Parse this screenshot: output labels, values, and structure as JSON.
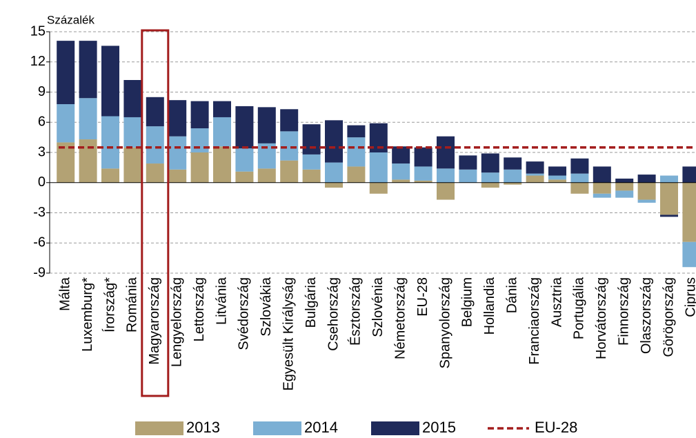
{
  "chart_data": {
    "type": "bar",
    "stacked": true,
    "y_axis_label": "Százalék",
    "categories": [
      "Málta",
      "Luxemburg*",
      "Írország*",
      "Románia",
      "Magyarország",
      "Lengyelország",
      "Lettország",
      "Litvánia",
      "Svédország",
      "Szlovákia",
      "Egyesült Királyság",
      "Bulgária",
      "Csehország",
      "Észtország",
      "Szlovénia",
      "Németország",
      "EU-28",
      "Spanyolország",
      "Belgium",
      "Hollandia",
      "Dánia",
      "Franciaország",
      "Ausztria",
      "Portugália",
      "Horvátország",
      "Finnország",
      "Olaszország",
      "Görögország",
      "Ciprus"
    ],
    "series": [
      {
        "name": "2013",
        "color": "#b3a274",
        "values": [
          4.0,
          4.3,
          1.4,
          3.5,
          1.9,
          1.3,
          3.0,
          3.6,
          1.1,
          1.4,
          2.2,
          1.3,
          -0.5,
          1.6,
          -1.1,
          0.3,
          0.2,
          -1.7,
          0.0,
          -0.5,
          -0.2,
          0.7,
          0.3,
          -1.1,
          -1.1,
          -0.8,
          -1.7,
          -3.2,
          -5.9
        ]
      },
      {
        "name": "2014",
        "color": "#7bafd4",
        "values": [
          3.8,
          4.1,
          5.2,
          3.0,
          3.7,
          3.3,
          2.4,
          2.9,
          2.3,
          2.5,
          2.9,
          1.5,
          2.0,
          2.9,
          3.0,
          1.6,
          1.4,
          1.4,
          1.3,
          1.0,
          1.3,
          0.2,
          0.4,
          0.9,
          -0.4,
          -0.7,
          -0.3,
          0.7,
          -2.5
        ]
      },
      {
        "name": "2015",
        "color": "#1f2a5a",
        "values": [
          6.3,
          5.7,
          7.0,
          3.7,
          2.9,
          3.6,
          2.7,
          1.6,
          4.2,
          3.6,
          2.2,
          3.0,
          4.2,
          1.2,
          2.9,
          1.7,
          1.9,
          3.2,
          1.4,
          1.9,
          1.2,
          1.2,
          0.9,
          1.5,
          1.6,
          0.4,
          0.8,
          -0.2,
          1.6
        ]
      }
    ],
    "reference_line": {
      "name": "EU-28",
      "value": 3.5,
      "color": "#a31d1d"
    },
    "highlight": "Magyarország",
    "highlight_color": "#a31d1d",
    "ylim": [
      -9,
      15
    ],
    "yticks": [
      -9,
      -6,
      -3,
      0,
      3,
      6,
      9,
      12,
      15
    ],
    "grid": true
  }
}
